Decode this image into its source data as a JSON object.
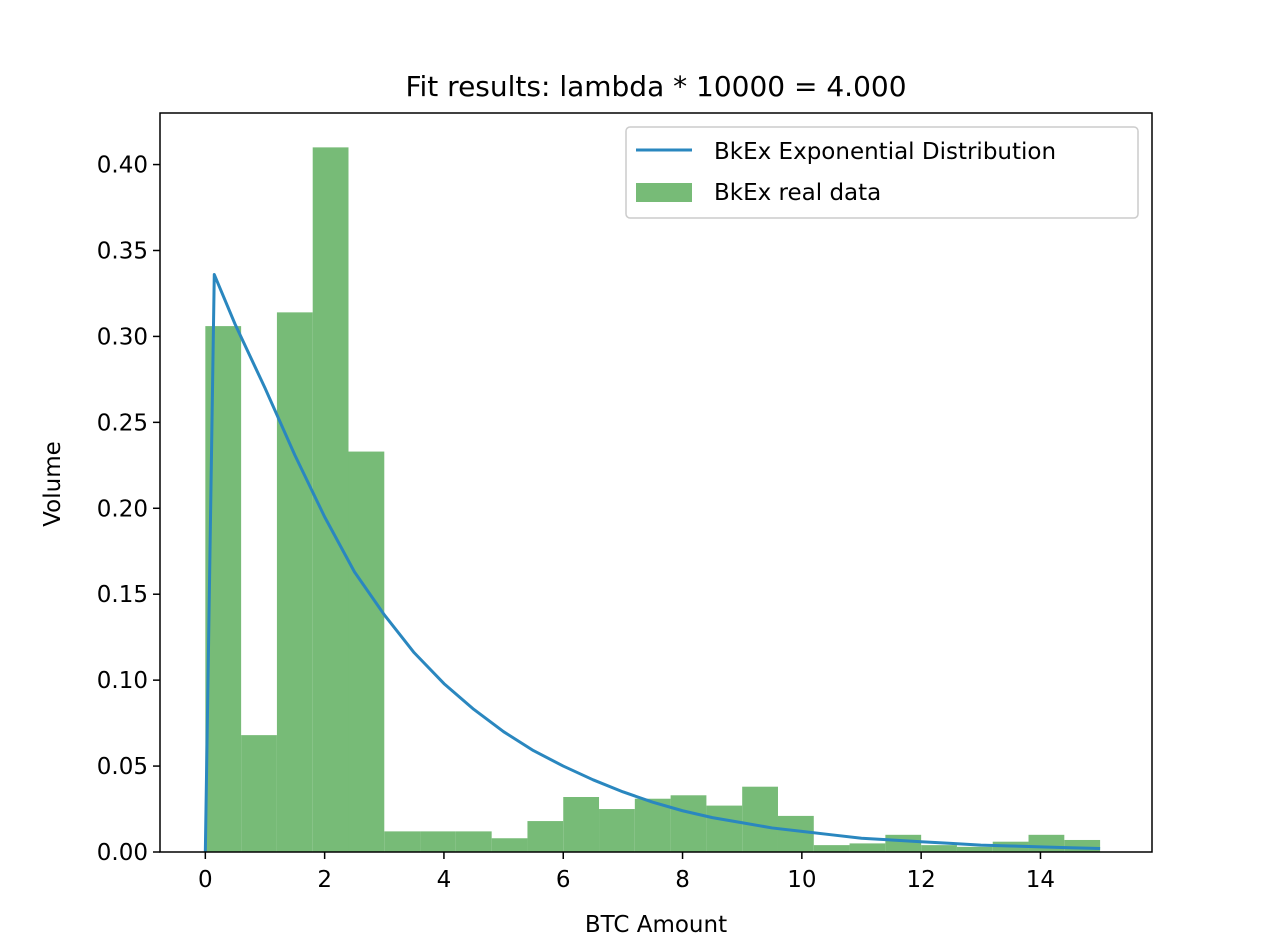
{
  "chart_data": {
    "type": "bar",
    "title": "Fit results: lambda * 10000 = 4.000",
    "xlabel": "BTC Amount",
    "ylabel": "Volume",
    "xlim": [
      -0.76,
      15.87
    ],
    "ylim": [
      0,
      0.43
    ],
    "xticks": [
      0,
      2,
      4,
      6,
      8,
      10,
      12,
      14
    ],
    "xtick_labels": [
      "0",
      "2",
      "4",
      "6",
      "8",
      "10",
      "12",
      "14"
    ],
    "yticks": [
      0.0,
      0.05,
      0.1,
      0.15,
      0.2,
      0.25,
      0.3,
      0.35,
      0.4
    ],
    "ytick_labels": [
      "0.00",
      "0.05",
      "0.10",
      "0.15",
      "0.20",
      "0.25",
      "0.30",
      "0.35",
      "0.40"
    ],
    "grid": false,
    "legend_position": "top-right",
    "series": [
      {
        "name": "BkEx real data",
        "kind": "histogram",
        "color": "#77bb77",
        "bin_edges": [
          0.0,
          0.6,
          1.2,
          1.8,
          2.4,
          3.0,
          3.6,
          4.2,
          4.8,
          5.4,
          6.0,
          6.6,
          7.2,
          7.8,
          8.4,
          9.0,
          9.6,
          10.2,
          10.8,
          11.4,
          12.0,
          12.6,
          13.2,
          13.8,
          14.4,
          15.0
        ],
        "values": [
          0.306,
          0.068,
          0.314,
          0.41,
          0.233,
          0.012,
          0.012,
          0.012,
          0.008,
          0.018,
          0.032,
          0.025,
          0.031,
          0.033,
          0.027,
          0.038,
          0.021,
          0.004,
          0.005,
          0.01,
          0.004,
          0.003,
          0.006,
          0.01,
          0.007
        ]
      },
      {
        "name": "BkEx Exponential Distribution",
        "kind": "line",
        "color": "#2a87bf",
        "x": [
          0.0,
          0.15,
          0.5,
          1.0,
          1.5,
          2.0,
          2.5,
          3.0,
          3.5,
          4.0,
          4.5,
          5.0,
          5.5,
          6.0,
          6.5,
          7.0,
          7.5,
          8.0,
          8.5,
          9.0,
          9.5,
          10.0,
          10.5,
          11.0,
          11.5,
          12.0,
          12.5,
          13.0,
          13.5,
          14.0,
          14.5,
          15.0
        ],
        "y": [
          0.0,
          0.336,
          0.307,
          0.27,
          0.231,
          0.195,
          0.163,
          0.138,
          0.116,
          0.098,
          0.083,
          0.07,
          0.059,
          0.05,
          0.042,
          0.035,
          0.029,
          0.024,
          0.02,
          0.017,
          0.014,
          0.012,
          0.01,
          0.008,
          0.007,
          0.006,
          0.005,
          0.004,
          0.0035,
          0.003,
          0.0025,
          0.002
        ]
      }
    ]
  }
}
